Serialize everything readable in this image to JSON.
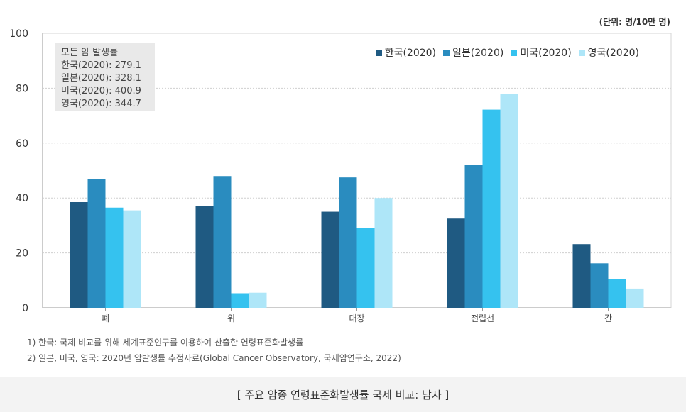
{
  "chart_data": {
    "type": "bar",
    "unit_label": "(단위: 명/10만 명)",
    "categories": [
      "폐",
      "위",
      "대장",
      "전립선",
      "간"
    ],
    "series": [
      {
        "name": "한국(2020)",
        "color": "#1f5a82",
        "values": [
          38.5,
          37,
          35,
          32.5,
          23.2
        ]
      },
      {
        "name": "일본(2020)",
        "color": "#2a8cbf",
        "values": [
          47,
          48,
          47.5,
          52,
          16.2
        ]
      },
      {
        "name": "미국(2020)",
        "color": "#35c2ef",
        "values": [
          36.5,
          5.3,
          29,
          72.2,
          10.5
        ]
      },
      {
        "name": "영국(2020)",
        "color": "#aee6f8",
        "values": [
          35.5,
          5.5,
          40,
          78,
          7
        ]
      }
    ],
    "ylim": [
      0,
      100
    ],
    "yticks": [
      0,
      20,
      40,
      60,
      80,
      100
    ],
    "grid": true,
    "legend_position": "top-right",
    "summary_box": {
      "title": "모든 암 발생률",
      "lines": [
        "한국(2020): 279.1",
        "일본(2020): 328.1",
        "미국(2020): 400.9",
        "영국(2020): 344.7"
      ]
    }
  },
  "notes": [
    "1) 한국: 국제 비교를 위해 세계표준인구를 이용하여 산출한 연령표준화발생률",
    "2) 일본, 미국, 영국:  2020년 암발생률 추정자료(Global Cancer Observatory, 국제암연구소, 2022)"
  ],
  "caption": "[ 주요 암종 연령표준화발생률 국제 비교: 남자 ]"
}
